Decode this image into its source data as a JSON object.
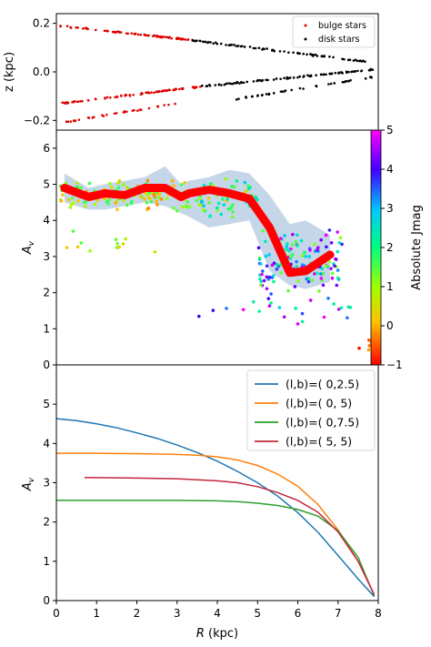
{
  "chart_data": [
    {
      "panel": "top",
      "type": "scatter",
      "ylabel": "z (kpc)",
      "xlim": [
        0,
        8
      ],
      "ylim": [
        -0.24,
        0.24
      ],
      "yticks": [
        -0.2,
        0.0,
        0.2
      ],
      "yticklabels": [
        "−0.2",
        "0.0",
        "0.2"
      ],
      "legend": {
        "placement": "top-right"
      },
      "series": [
        {
          "name": "bulge stars",
          "color": "#e00000",
          "tracks": [
            {
              "x_range": [
                0.1,
                3.4
              ],
              "z_range": [
                0.19,
                0.13
              ],
              "count": 80
            },
            {
              "x_range": [
                0.1,
                3.6
              ],
              "z_range": [
                -0.13,
                -0.06
              ],
              "count": 80
            },
            {
              "x_range": [
                0.1,
                3.0
              ],
              "z_range": [
                -0.21,
                -0.13
              ],
              "count": 35
            }
          ]
        },
        {
          "name": "disk stars",
          "color": "#000000",
          "tracks": [
            {
              "x_range": [
                3.4,
                7.8
              ],
              "z_range": [
                0.13,
                0.04
              ],
              "count": 80
            },
            {
              "x_range": [
                3.6,
                7.9
              ],
              "z_range": [
                -0.06,
                0.01
              ],
              "count": 90
            },
            {
              "x_range": [
                4.2,
                7.9
              ],
              "z_range": [
                -0.12,
                -0.02
              ],
              "count": 40
            }
          ]
        }
      ]
    },
    {
      "panel": "middle",
      "type": "scatter",
      "ylabel": "A_v",
      "xlim": [
        0,
        8
      ],
      "ylim": [
        0,
        6.5
      ],
      "yticks": [
        0,
        1,
        2,
        3,
        4,
        5,
        6
      ],
      "colorbar": {
        "label": "Absolute Jmag",
        "range": [
          -1,
          5
        ],
        "ticks": [
          -1,
          0,
          1,
          2,
          3,
          4,
          5
        ],
        "ticklabels": [
          "−1",
          "0",
          "1",
          "2",
          "3",
          "4",
          "5"
        ]
      },
      "median_line": {
        "color": "#ff0000",
        "x": [
          0.2,
          0.8,
          1.2,
          1.7,
          2.2,
          2.7,
          3.1,
          3.3,
          3.8,
          4.3,
          4.8,
          5.3,
          5.8,
          6.2,
          6.8
        ],
        "y": [
          4.9,
          4.65,
          4.75,
          4.7,
          4.9,
          4.9,
          4.65,
          4.75,
          4.85,
          4.75,
          4.6,
          3.8,
          2.55,
          2.6,
          3.05
        ]
      },
      "scatter_band": {
        "color": "#b0c8e0",
        "x": [
          0.2,
          0.8,
          1.2,
          1.7,
          2.2,
          2.7,
          3.1,
          3.3,
          3.8,
          4.3,
          4.8,
          5.3,
          5.8,
          6.2,
          6.8
        ],
        "low": [
          4.5,
          4.3,
          4.3,
          4.4,
          4.5,
          4.4,
          4.2,
          4.1,
          3.8,
          3.9,
          4.0,
          2.6,
          2.2,
          2.1,
          2.3
        ],
        "high": [
          5.3,
          4.9,
          5.0,
          5.1,
          5.2,
          5.5,
          5.0,
          5.1,
          5.2,
          5.4,
          5.3,
          4.7,
          3.9,
          4.0,
          3.6
        ]
      },
      "points_by_region": [
        {
          "x_range": [
            0.1,
            3.0
          ],
          "y_mean": 4.7,
          "y_spread": 0.55,
          "mag_range": [
            -0.3,
            2.0
          ],
          "count": 120
        },
        {
          "x_range": [
            3.0,
            5.0
          ],
          "y_mean": 4.6,
          "y_spread": 0.8,
          "mag_range": [
            0.0,
            3.0
          ],
          "count": 80
        },
        {
          "x_range": [
            5.0,
            7.1
          ],
          "y_mean": 2.9,
          "y_spread": 1.1,
          "mag_range": [
            1.0,
            5.0
          ],
          "count": 150
        },
        {
          "x_range": [
            3.5,
            7.5
          ],
          "y_mean": 1.5,
          "y_spread": 0.6,
          "mag_range": [
            2.0,
            5.0
          ],
          "count": 25
        },
        {
          "x_range": [
            0.1,
            2.5
          ],
          "y_mean": 3.4,
          "y_spread": 0.8,
          "mag_range": [
            0.0,
            1.5
          ],
          "count": 12
        },
        {
          "x_range": [
            7.5,
            7.9
          ],
          "y_mean": 0.5,
          "y_spread": 0.3,
          "mag_range": [
            -1.0,
            0.0
          ],
          "count": 5
        }
      ]
    },
    {
      "panel": "bottom",
      "type": "line",
      "xlabel": "R (kpc)",
      "ylabel": "A_v",
      "xlim": [
        0,
        8
      ],
      "ylim": [
        0,
        6
      ],
      "xticks": [
        0,
        1,
        2,
        3,
        4,
        5,
        6,
        7,
        8
      ],
      "yticks": [
        0,
        1,
        2,
        3,
        4,
        5
      ],
      "legend": {
        "placement": "top-right"
      },
      "series": [
        {
          "name": "(l,b)=( 0,2.5)",
          "color": "#1f77b4",
          "x": [
            0,
            0.5,
            1,
            1.5,
            2,
            2.5,
            3,
            3.5,
            4,
            4.5,
            5,
            5.5,
            6,
            6.5,
            7,
            7.5,
            7.9
          ],
          "y": [
            4.63,
            4.58,
            4.5,
            4.4,
            4.27,
            4.13,
            3.96,
            3.77,
            3.55,
            3.29,
            3.0,
            2.66,
            2.24,
            1.74,
            1.15,
            0.55,
            0.1
          ]
        },
        {
          "name": "(l,b)=( 0, 5)",
          "color": "#ff7f0e",
          "x": [
            0,
            1,
            2,
            3,
            3.5,
            4,
            4.5,
            5,
            5.5,
            6,
            6.5,
            7,
            7.5,
            7.9
          ],
          "y": [
            3.75,
            3.75,
            3.74,
            3.72,
            3.7,
            3.66,
            3.58,
            3.44,
            3.22,
            2.91,
            2.45,
            1.8,
            1.0,
            0.15
          ]
        },
        {
          "name": "(l,b)=( 0,7.5)",
          "color": "#2ca02c",
          "x": [
            0,
            1,
            2,
            3,
            4,
            4.5,
            5,
            5.5,
            6,
            6.5,
            7,
            7.5,
            7.9
          ],
          "y": [
            2.55,
            2.55,
            2.55,
            2.55,
            2.54,
            2.52,
            2.48,
            2.42,
            2.32,
            2.15,
            1.78,
            1.1,
            0.12
          ]
        },
        {
          "name": "(l,b)=( 5, 5)",
          "color": "#c3283f",
          "x": [
            0.7,
            1,
            2,
            3,
            4,
            4.5,
            5,
            5.5,
            6,
            6.5,
            7,
            7.5,
            7.9
          ],
          "y": [
            3.13,
            3.13,
            3.12,
            3.1,
            3.05,
            3.0,
            2.9,
            2.75,
            2.55,
            2.25,
            1.75,
            1.0,
            0.15
          ]
        }
      ]
    }
  ]
}
